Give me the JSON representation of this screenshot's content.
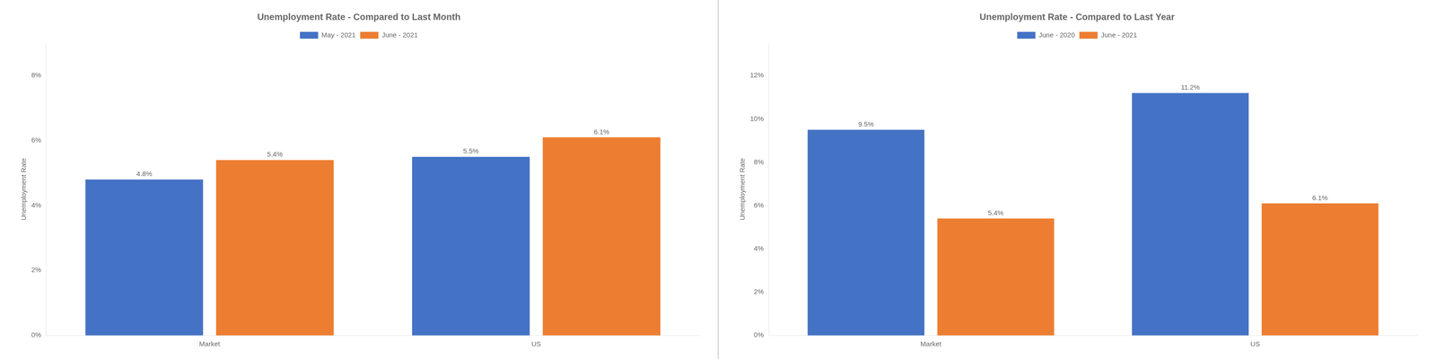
{
  "chart_data": [
    {
      "type": "bar",
      "title": "Unemployment Rate - Compared to Last Month",
      "ylabel": "Unemployment Rate",
      "categories": [
        "Market",
        "US"
      ],
      "series": [
        {
          "name": "May - 2021",
          "color": "#4472C4",
          "values": [
            0.048,
            0.055
          ],
          "value_labels": [
            "4.8%",
            "5.5%"
          ]
        },
        {
          "name": "June - 2021",
          "color": "#ED7D31",
          "values": [
            0.054,
            0.061
          ],
          "value_labels": [
            "5.4%",
            "6.1%"
          ]
        }
      ],
      "ylim": [
        0,
        0.09
      ],
      "yticks": [
        {
          "value": 0,
          "label": "0%"
        },
        {
          "value": 0.02,
          "label": "2%"
        },
        {
          "value": 0.04,
          "label": "4%"
        },
        {
          "value": 0.06,
          "label": "6%"
        },
        {
          "value": 0.08,
          "label": "8%"
        }
      ],
      "grid": false,
      "legend": "top",
      "data_labels": true
    },
    {
      "type": "bar",
      "title": "Unemployment Rate - Compared to Last Year",
      "ylabel": "Unemployment Rate",
      "categories": [
        "Market",
        "US"
      ],
      "series": [
        {
          "name": "June - 2020",
          "color": "#4472C4",
          "values": [
            0.095,
            0.112
          ],
          "value_labels": [
            "9.5%",
            "11.2%"
          ]
        },
        {
          "name": "June - 2021",
          "color": "#ED7D31",
          "values": [
            0.054,
            0.061
          ],
          "value_labels": [
            "5.4%",
            "6.1%"
          ]
        }
      ],
      "ylim": [
        0,
        0.135
      ],
      "yticks": [
        {
          "value": 0,
          "label": "0%"
        },
        {
          "value": 0.02,
          "label": "2%"
        },
        {
          "value": 0.04,
          "label": "4%"
        },
        {
          "value": 0.06,
          "label": "6%"
        },
        {
          "value": 0.08,
          "label": "8%"
        },
        {
          "value": 0.1,
          "label": "10%"
        },
        {
          "value": 0.12,
          "label": "12%"
        }
      ],
      "grid": false,
      "legend": "top",
      "data_labels": true
    }
  ]
}
